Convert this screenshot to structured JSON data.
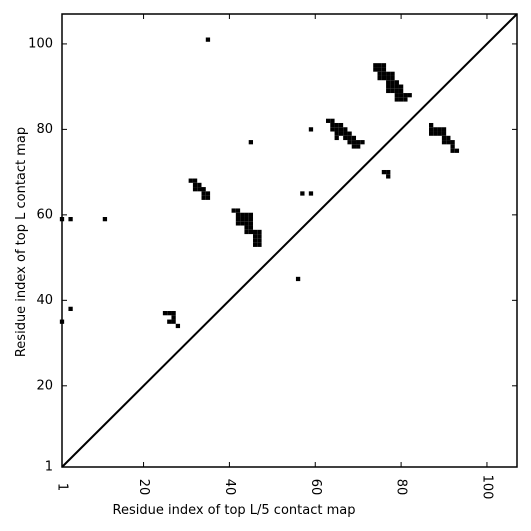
{
  "chart_data": {
    "type": "heatmap",
    "title": "",
    "xlabel": "Residue index of top L/5 contact map",
    "ylabel": "Residue index of top L contact map",
    "xlim": [
      1,
      107
    ],
    "ylim": [
      1,
      107
    ],
    "xticks": [
      1,
      20,
      40,
      60,
      80,
      100
    ],
    "yticks": [
      1,
      20,
      40,
      60,
      80,
      100
    ],
    "xtick_labels": [
      "1",
      "20",
      "40",
      "60",
      "80",
      "100"
    ],
    "ytick_labels": [
      "1",
      "20",
      "40",
      "60",
      "80",
      "100"
    ],
    "grid": false,
    "diagonal": true,
    "cell_color": "#000000",
    "contacts": [
      [
        35,
        101
      ],
      [
        74,
        95
      ],
      [
        75,
        95
      ],
      [
        76,
        95
      ],
      [
        74,
        94
      ],
      [
        75,
        94
      ],
      [
        76,
        94
      ],
      [
        75,
        93
      ],
      [
        76,
        93
      ],
      [
        77,
        93
      ],
      [
        78,
        93
      ],
      [
        75,
        92
      ],
      [
        76,
        92
      ],
      [
        77,
        92
      ],
      [
        78,
        92
      ],
      [
        77,
        91
      ],
      [
        78,
        91
      ],
      [
        79,
        91
      ],
      [
        77,
        90
      ],
      [
        78,
        90
      ],
      [
        79,
        90
      ],
      [
        80,
        90
      ],
      [
        77,
        89
      ],
      [
        78,
        89
      ],
      [
        79,
        89
      ],
      [
        80,
        89
      ],
      [
        79,
        88
      ],
      [
        80,
        88
      ],
      [
        81,
        88
      ],
      [
        82,
        88
      ],
      [
        79,
        87
      ],
      [
        80,
        87
      ],
      [
        81,
        87
      ],
      [
        63,
        82
      ],
      [
        64,
        82
      ],
      [
        64,
        81
      ],
      [
        65,
        81
      ],
      [
        66,
        81
      ],
      [
        64,
        80
      ],
      [
        65,
        80
      ],
      [
        66,
        80
      ],
      [
        67,
        80
      ],
      [
        59,
        80
      ],
      [
        87,
        81
      ],
      [
        65,
        79
      ],
      [
        66,
        79
      ],
      [
        67,
        79
      ],
      [
        68,
        79
      ],
      [
        87,
        80
      ],
      [
        88,
        80
      ],
      [
        89,
        80
      ],
      [
        90,
        80
      ],
      [
        65,
        78
      ],
      [
        67,
        78
      ],
      [
        68,
        78
      ],
      [
        69,
        78
      ],
      [
        87,
        79
      ],
      [
        88,
        79
      ],
      [
        89,
        79
      ],
      [
        90,
        79
      ],
      [
        68,
        77
      ],
      [
        69,
        77
      ],
      [
        70,
        77
      ],
      [
        71,
        77
      ],
      [
        90,
        78
      ],
      [
        91,
        78
      ],
      [
        45,
        77
      ],
      [
        69,
        76
      ],
      [
        70,
        76
      ],
      [
        90,
        77
      ],
      [
        91,
        77
      ],
      [
        92,
        77
      ],
      [
        92,
        76
      ],
      [
        92,
        75
      ],
      [
        93,
        75
      ],
      [
        76,
        70
      ],
      [
        77,
        70
      ],
      [
        77,
        69
      ],
      [
        31,
        68
      ],
      [
        32,
        68
      ],
      [
        32,
        67
      ],
      [
        33,
        67
      ],
      [
        32,
        66
      ],
      [
        33,
        66
      ],
      [
        34,
        66
      ],
      [
        34,
        65
      ],
      [
        35,
        65
      ],
      [
        34,
        64
      ],
      [
        35,
        64
      ],
      [
        57,
        65
      ],
      [
        59,
        65
      ],
      [
        41,
        61
      ],
      [
        42,
        61
      ],
      [
        42,
        60
      ],
      [
        43,
        60
      ],
      [
        44,
        60
      ],
      [
        45,
        60
      ],
      [
        1,
        59
      ],
      [
        3,
        59
      ],
      [
        11,
        59
      ],
      [
        42,
        59
      ],
      [
        43,
        59
      ],
      [
        44,
        59
      ],
      [
        45,
        59
      ],
      [
        42,
        58
      ],
      [
        43,
        58
      ],
      [
        44,
        58
      ],
      [
        45,
        58
      ],
      [
        44,
        57
      ],
      [
        45,
        57
      ],
      [
        44,
        56
      ],
      [
        45,
        56
      ],
      [
        46,
        56
      ],
      [
        47,
        56
      ],
      [
        46,
        55
      ],
      [
        47,
        55
      ],
      [
        46,
        54
      ],
      [
        47,
        54
      ],
      [
        46,
        53
      ],
      [
        47,
        53
      ],
      [
        56,
        45
      ],
      [
        3,
        38
      ],
      [
        25,
        37
      ],
      [
        26,
        37
      ],
      [
        27,
        37
      ],
      [
        27,
        36
      ],
      [
        26,
        35
      ],
      [
        27,
        35
      ],
      [
        1,
        35
      ],
      [
        28,
        34
      ]
    ]
  }
}
